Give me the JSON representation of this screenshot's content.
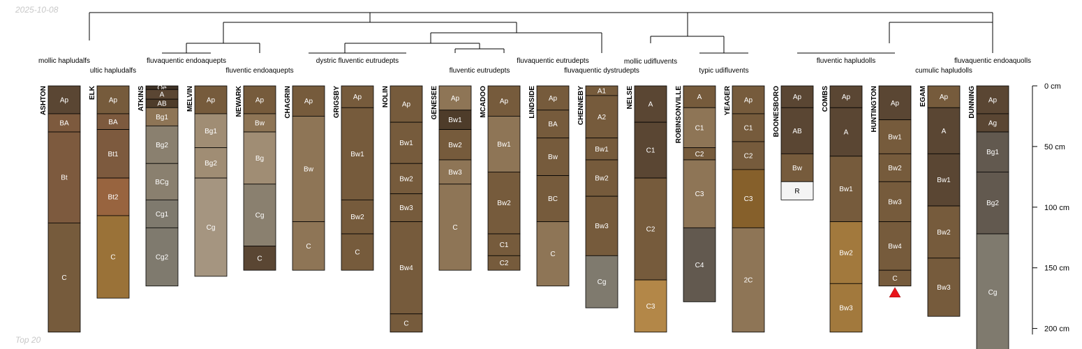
{
  "date_text": "2025-10-08",
  "caption_text": "Top 20",
  "chart_data": {
    "type": "soil_profile_sketch",
    "description_unit": "cm",
    "depth_axis": {
      "ticks": [
        0,
        50,
        100,
        150,
        200
      ],
      "labels": [
        "0 cm",
        "50 cm",
        "100 cm",
        "150 cm",
        "200 cm"
      ],
      "max": 205
    },
    "colors": {
      "d": "#5a4633",
      "dd": "#4e3c2a",
      "m": "#765b3c",
      "mr": "#7d5a3e",
      "r": "#98643f",
      "l": "#8e7556",
      "ll": "#a08d74",
      "pale": "#a59580",
      "g": "#8a806f",
      "gd": "#706a5d",
      "gs": "#7f7a6e",
      "y": "#9a7238",
      "yd": "#86602b",
      "y2": "#a2793d",
      "o": "#b38748",
      "bk": "#3f3226",
      "w": "#f4f4f4",
      "gr": "#62594f"
    },
    "profiles": [
      {
        "name": "ASHTON",
        "taxon": "mollic hapludalfs",
        "horizons": [
          {
            "name": "Ap",
            "top": 0,
            "bottom": 23,
            "color": "d"
          },
          {
            "name": "BA",
            "top": 23,
            "bottom": 38,
            "color": "mr"
          },
          {
            "name": "Bt",
            "top": 38,
            "bottom": 113,
            "color": "mr"
          },
          {
            "name": "C",
            "top": 113,
            "bottom": 203,
            "color": "m"
          }
        ]
      },
      {
        "name": "ELK",
        "taxon": "ultic hapludalfs",
        "horizons": [
          {
            "name": "Ap",
            "top": 0,
            "bottom": 23,
            "color": "m"
          },
          {
            "name": "BA",
            "top": 23,
            "bottom": 36,
            "color": "mr"
          },
          {
            "name": "Bt1",
            "top": 36,
            "bottom": 76,
            "color": "mr"
          },
          {
            "name": "Bt2",
            "top": 76,
            "bottom": 107,
            "color": "r"
          },
          {
            "name": "C",
            "top": 107,
            "bottom": 175,
            "color": "y"
          }
        ]
      },
      {
        "name": "ATKINS",
        "taxon": "fluvaquentic endoaquepts",
        "horizons": [
          {
            "name": "Oe",
            "top": 0,
            "bottom": 3,
            "color": "bk"
          },
          {
            "name": "A",
            "top": 3,
            "bottom": 11,
            "color": "d"
          },
          {
            "name": "AB",
            "top": 11,
            "bottom": 18,
            "color": "dd"
          },
          {
            "name": "Bg1",
            "top": 18,
            "bottom": 33,
            "color": "l"
          },
          {
            "name": "Bg2",
            "top": 33,
            "bottom": 64,
            "color": "g"
          },
          {
            "name": "BCg",
            "top": 64,
            "bottom": 94,
            "color": "g"
          },
          {
            "name": "Cg1",
            "top": 94,
            "bottom": 117,
            "color": "gs"
          },
          {
            "name": "Cg2",
            "top": 117,
            "bottom": 165,
            "color": "gs"
          }
        ]
      },
      {
        "name": "MELVIN",
        "taxon": "",
        "horizons": [
          {
            "name": "Ap",
            "top": 0,
            "bottom": 23,
            "color": "m"
          },
          {
            "name": "Bg1",
            "top": 23,
            "bottom": 51,
            "color": "ll"
          },
          {
            "name": "Bg2",
            "top": 51,
            "bottom": 76,
            "color": "ll"
          },
          {
            "name": "Cg",
            "top": 76,
            "bottom": 157,
            "color": "pale"
          }
        ]
      },
      {
        "name": "NEWARK",
        "taxon": "fluventic endoaquepts",
        "horizons": [
          {
            "name": "Ap",
            "top": 0,
            "bottom": 23,
            "color": "m"
          },
          {
            "name": "Bw",
            "top": 23,
            "bottom": 38,
            "color": "l"
          },
          {
            "name": "Bg",
            "top": 38,
            "bottom": 81,
            "color": "ll"
          },
          {
            "name": "Cg",
            "top": 81,
            "bottom": 132,
            "color": "g"
          },
          {
            "name": "C",
            "top": 132,
            "bottom": 152,
            "color": "d"
          }
        ]
      },
      {
        "name": "CHAGRIN",
        "taxon": "",
        "horizons": [
          {
            "name": "Ap",
            "top": 0,
            "bottom": 25,
            "color": "m"
          },
          {
            "name": "Bw",
            "top": 25,
            "bottom": 112,
            "color": "l"
          },
          {
            "name": "C",
            "top": 112,
            "bottom": 152,
            "color": "l"
          }
        ]
      },
      {
        "name": "GRIGSBY",
        "taxon": "dystric fluventic eutrudepts",
        "horizons": [
          {
            "name": "Ap",
            "top": 0,
            "bottom": 18,
            "color": "m"
          },
          {
            "name": "Bw1",
            "top": 18,
            "bottom": 94,
            "color": "m"
          },
          {
            "name": "Bw2",
            "top": 94,
            "bottom": 122,
            "color": "m"
          },
          {
            "name": "C",
            "top": 122,
            "bottom": 152,
            "color": "m"
          }
        ]
      },
      {
        "name": "NOLIN",
        "taxon": "",
        "horizons": [
          {
            "name": "Ap",
            "top": 0,
            "bottom": 30,
            "color": "m"
          },
          {
            "name": "Bw1",
            "top": 30,
            "bottom": 64,
            "color": "m"
          },
          {
            "name": "Bw2",
            "top": 64,
            "bottom": 89,
            "color": "m"
          },
          {
            "name": "Bw3",
            "top": 89,
            "bottom": 112,
            "color": "m"
          },
          {
            "name": "Bw4",
            "top": 112,
            "bottom": 188,
            "color": "m"
          },
          {
            "name": "C",
            "top": 188,
            "bottom": 203,
            "color": "m"
          }
        ]
      },
      {
        "name": "GENESEE",
        "taxon": "fluventic eutrudepts",
        "horizons": [
          {
            "name": "Ap",
            "top": 0,
            "bottom": 20,
            "color": "l"
          },
          {
            "name": "Bw1",
            "top": 20,
            "bottom": 36,
            "color": "dd"
          },
          {
            "name": "Bw2",
            "top": 36,
            "bottom": 61,
            "color": "m"
          },
          {
            "name": "Bw3",
            "top": 61,
            "bottom": 81,
            "color": "l"
          },
          {
            "name": "C",
            "top": 81,
            "bottom": 152,
            "color": "l"
          }
        ]
      },
      {
        "name": "MCADOO",
        "taxon": "fluvaquentic eutrudepts",
        "horizons": [
          {
            "name": "Ap",
            "top": 0,
            "bottom": 25,
            "color": "m"
          },
          {
            "name": "Bw1",
            "top": 25,
            "bottom": 71,
            "color": "l"
          },
          {
            "name": "Bw2",
            "top": 71,
            "bottom": 122,
            "color": "m"
          },
          {
            "name": "C1",
            "top": 122,
            "bottom": 140,
            "color": "m"
          },
          {
            "name": "C2",
            "top": 140,
            "bottom": 152,
            "color": "m"
          }
        ]
      },
      {
        "name": "LINDSIDE",
        "taxon": "",
        "horizons": [
          {
            "name": "Ap",
            "top": 0,
            "bottom": 20,
            "color": "m"
          },
          {
            "name": "BA",
            "top": 20,
            "bottom": 43,
            "color": "m"
          },
          {
            "name": "Bw",
            "top": 43,
            "bottom": 74,
            "color": "m"
          },
          {
            "name": "BC",
            "top": 74,
            "bottom": 112,
            "color": "m"
          },
          {
            "name": "C",
            "top": 112,
            "bottom": 165,
            "color": "l"
          }
        ]
      },
      {
        "name": "CHENNEBY",
        "taxon": "fluvaquentic dystrudepts",
        "horizons": [
          {
            "name": "A1",
            "top": 0,
            "bottom": 8,
            "color": "m"
          },
          {
            "name": "A2",
            "top": 8,
            "bottom": 43,
            "color": "m"
          },
          {
            "name": "Bw1",
            "top": 43,
            "bottom": 61,
            "color": "m"
          },
          {
            "name": "Bw2",
            "top": 61,
            "bottom": 91,
            "color": "m"
          },
          {
            "name": "Bw3",
            "top": 91,
            "bottom": 140,
            "color": "m"
          },
          {
            "name": "Cg",
            "top": 140,
            "bottom": 183,
            "color": "gs"
          }
        ]
      },
      {
        "name": "NELSE",
        "taxon": "mollic udifluvents",
        "horizons": [
          {
            "name": "A",
            "top": 0,
            "bottom": 30,
            "color": "d"
          },
          {
            "name": "C1",
            "top": 30,
            "bottom": 76,
            "color": "d"
          },
          {
            "name": "C2",
            "top": 76,
            "bottom": 160,
            "color": "m"
          },
          {
            "name": "C3",
            "top": 160,
            "bottom": 203,
            "color": "o"
          }
        ]
      },
      {
        "name": "ROBINSONVILLE",
        "taxon": "",
        "horizons": [
          {
            "name": "A",
            "top": 0,
            "bottom": 18,
            "color": "m"
          },
          {
            "name": "C1",
            "top": 18,
            "bottom": 51,
            "color": "l"
          },
          {
            "name": "C2",
            "top": 51,
            "bottom": 61,
            "color": "m"
          },
          {
            "name": "C3",
            "top": 61,
            "bottom": 117,
            "color": "l"
          },
          {
            "name": "C4",
            "top": 117,
            "bottom": 178,
            "color": "gr"
          }
        ]
      },
      {
        "name": "YEAGER",
        "taxon": "typic udifluvents",
        "horizons": [
          {
            "name": "Ap",
            "top": 0,
            "bottom": 23,
            "color": "m"
          },
          {
            "name": "C1",
            "top": 23,
            "bottom": 46,
            "color": "m"
          },
          {
            "name": "C2",
            "top": 46,
            "bottom": 69,
            "color": "m"
          },
          {
            "name": "C3",
            "top": 69,
            "bottom": 117,
            "color": "yd"
          },
          {
            "name": "2C",
            "top": 117,
            "bottom": 203,
            "color": "l"
          }
        ]
      },
      {
        "name": "BOONESBORO",
        "taxon": "",
        "horizons": [
          {
            "name": "Ap",
            "top": 0,
            "bottom": 18,
            "color": "d"
          },
          {
            "name": "AB",
            "top": 18,
            "bottom": 56,
            "color": "d"
          },
          {
            "name": "Bw",
            "top": 56,
            "bottom": 79,
            "color": "m"
          },
          {
            "name": "R",
            "top": 79,
            "bottom": 94,
            "color": "w"
          }
        ]
      },
      {
        "name": "COMBS",
        "taxon": "fluventic hapludolls",
        "horizons": [
          {
            "name": "Ap",
            "top": 0,
            "bottom": 18,
            "color": "d"
          },
          {
            "name": "A",
            "top": 18,
            "bottom": 58,
            "color": "d"
          },
          {
            "name": "Bw1",
            "top": 58,
            "bottom": 112,
            "color": "m"
          },
          {
            "name": "Bw2",
            "top": 112,
            "bottom": 163,
            "color": "y2"
          },
          {
            "name": "Bw3",
            "top": 163,
            "bottom": 203,
            "color": "y2"
          }
        ]
      },
      {
        "name": "HUNTINGTON",
        "taxon": "",
        "bottom_marker": true,
        "horizons": [
          {
            "name": "Ap",
            "top": 0,
            "bottom": 28,
            "color": "d"
          },
          {
            "name": "Bw1",
            "top": 28,
            "bottom": 56,
            "color": "m"
          },
          {
            "name": "Bw2",
            "top": 56,
            "bottom": 79,
            "color": "m"
          },
          {
            "name": "Bw3",
            "top": 79,
            "bottom": 112,
            "color": "m"
          },
          {
            "name": "Bw4",
            "top": 112,
            "bottom": 152,
            "color": "m"
          },
          {
            "name": "C",
            "top": 152,
            "bottom": 165,
            "color": "m"
          }
        ]
      },
      {
        "name": "EGAM",
        "taxon": "cumulic hapludolls",
        "horizons": [
          {
            "name": "Ap",
            "top": 0,
            "bottom": 18,
            "color": "m"
          },
          {
            "name": "A",
            "top": 18,
            "bottom": 56,
            "color": "d"
          },
          {
            "name": "Bw1",
            "top": 56,
            "bottom": 99,
            "color": "d"
          },
          {
            "name": "Bw2",
            "top": 99,
            "bottom": 142,
            "color": "m"
          },
          {
            "name": "Bw3",
            "top": 142,
            "bottom": 190,
            "color": "m"
          }
        ]
      },
      {
        "name": "DUNNING",
        "taxon": "fluvaquentic endoaquolls",
        "horizons": [
          {
            "name": "Ap",
            "top": 0,
            "bottom": 23,
            "color": "d"
          },
          {
            "name": "Ag",
            "top": 23,
            "bottom": 38,
            "color": "d"
          },
          {
            "name": "Bg1",
            "top": 38,
            "bottom": 71,
            "color": "gr"
          },
          {
            "name": "Bg2",
            "top": 71,
            "bottom": 122,
            "color": "gr"
          },
          {
            "name": "Cg",
            "top": 122,
            "bottom": 218,
            "color": "gs"
          }
        ]
      }
    ]
  }
}
